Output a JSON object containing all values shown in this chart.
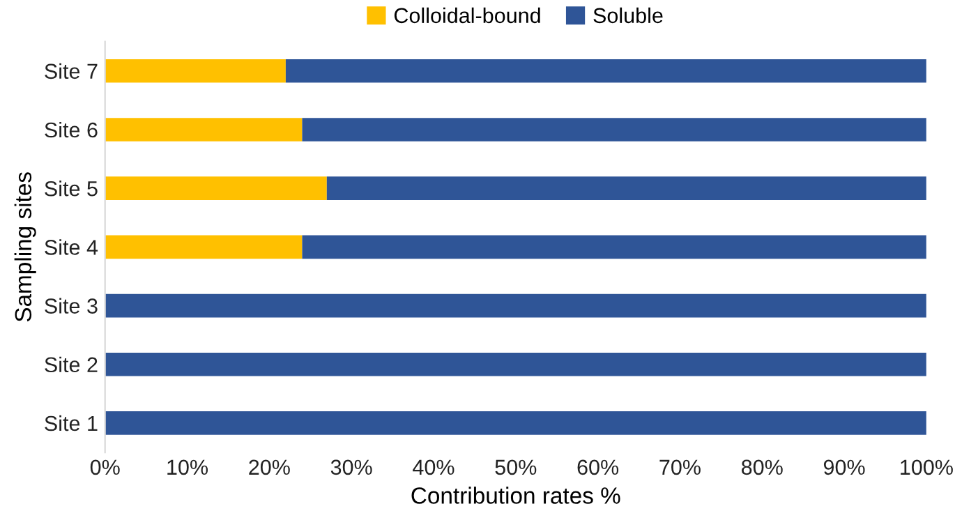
{
  "chart_data": {
    "type": "bar",
    "orientation": "horizontal",
    "stacked": true,
    "xlabel": "Contribution rates %",
    "ylabel": "Sampling sites",
    "categories": [
      "Site 7",
      "Site 6",
      "Site 5",
      "Site 4",
      "Site 3",
      "Site 2",
      "Site 1"
    ],
    "series": [
      {
        "name": "Colloidal-bound",
        "color": "#ffc000",
        "values": [
          22,
          24,
          27,
          24,
          0,
          0,
          0
        ]
      },
      {
        "name": "Soluble",
        "color": "#2f5597",
        "values": [
          78,
          76,
          73,
          76,
          100,
          100,
          100
        ]
      }
    ],
    "xlim": [
      0,
      100
    ],
    "xticks": [
      {
        "value": 0,
        "label": "0%"
      },
      {
        "value": 10,
        "label": "10%"
      },
      {
        "value": 20,
        "label": "20%"
      },
      {
        "value": 30,
        "label": "30%"
      },
      {
        "value": 40,
        "label": "40%"
      },
      {
        "value": 50,
        "label": "50%"
      },
      {
        "value": 60,
        "label": "60%"
      },
      {
        "value": 70,
        "label": "70%"
      },
      {
        "value": 80,
        "label": "80%"
      },
      {
        "value": 90,
        "label": "90%"
      },
      {
        "value": 100,
        "label": "100%"
      }
    ],
    "legend": "top",
    "grid": false
  }
}
